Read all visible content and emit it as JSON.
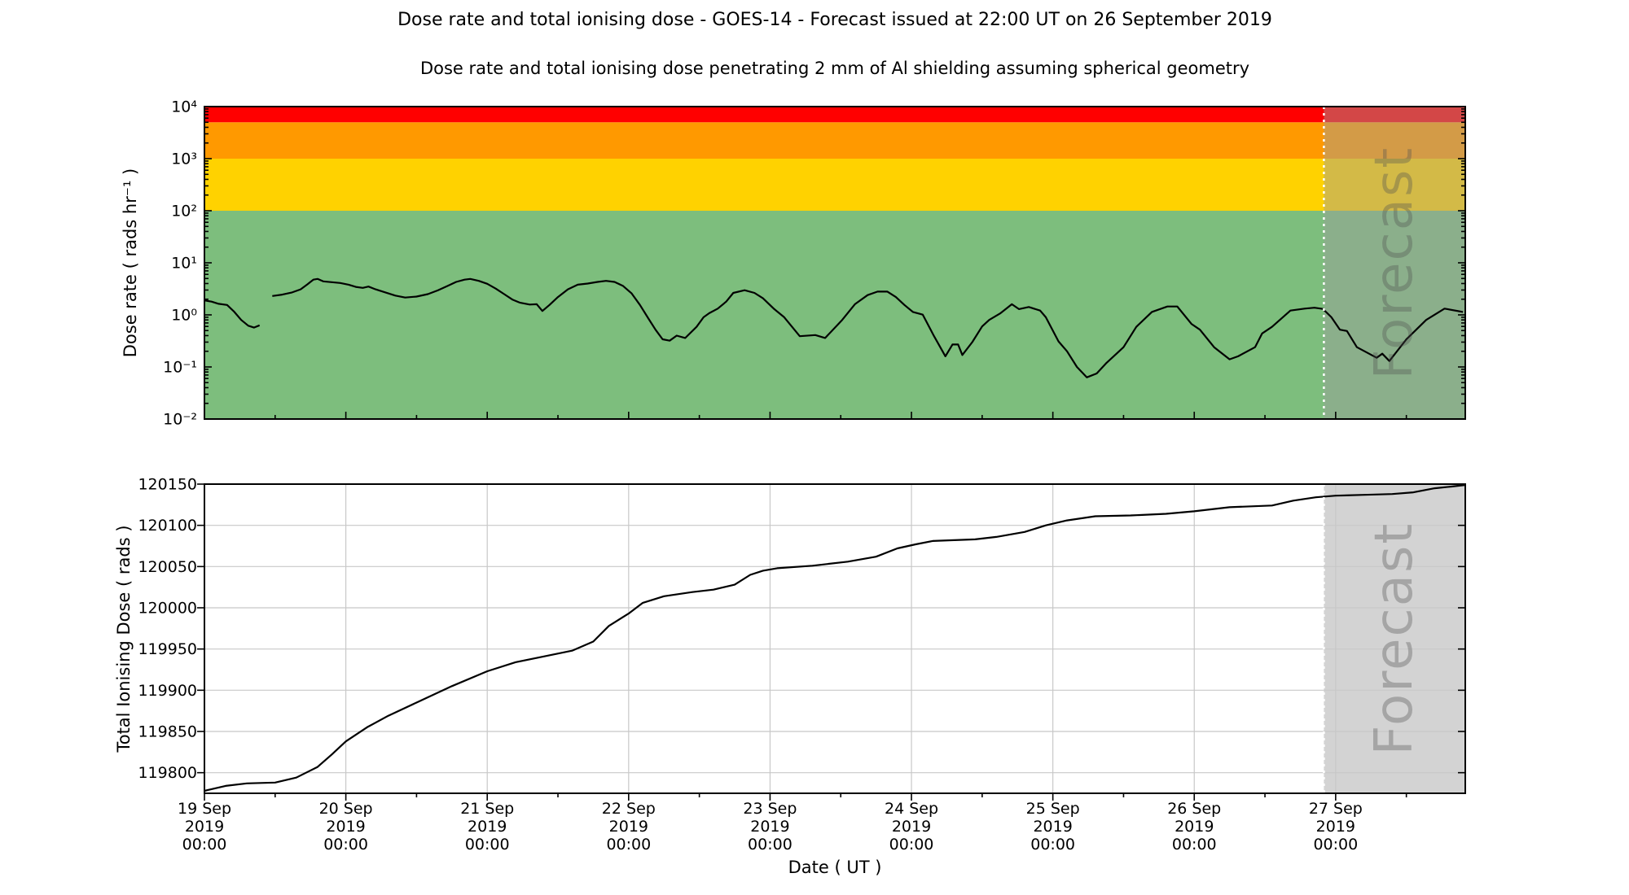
{
  "figure": {
    "title": "Dose rate and total ionising dose - GOES-14 - Forecast issued at 22:00 UT on 26 September 2019",
    "subtitle": "Dose rate and total ionising dose penetrating 2 mm of Al shielding assuming spherical geometry",
    "background": "#FFFFFF"
  },
  "forecast": {
    "label": "Forecast",
    "start_day": 7.9167,
    "overlay_color": "rgba(158,158,158,0.45)",
    "divider_color": "#FFFFFF"
  },
  "xaxis": {
    "label": "Date ( UT )",
    "dates": [
      "19 Sep",
      "20 Sep",
      "21 Sep",
      "22 Sep",
      "23 Sep",
      "24 Sep",
      "25 Sep",
      "26 Sep",
      "27 Sep"
    ],
    "year": "2019",
    "time": "00:00",
    "domain_days": [
      0,
      8.9167
    ],
    "major_tick_days": [
      0,
      1,
      2,
      3,
      4,
      5,
      6,
      7,
      8
    ],
    "minor_tick_interval_days": 0.5
  },
  "chart_data": [
    {
      "id": "dose_rate",
      "type": "line",
      "ylabel": "Dose rate ( rads hr⁻¹ )",
      "yscale": "log",
      "ylim": [
        0.01,
        10000
      ],
      "yticks": [
        {
          "v": 0.01,
          "label": "10⁻²"
        },
        {
          "v": 0.1,
          "label": "10⁻¹"
        },
        {
          "v": 1,
          "label": "10⁰"
        },
        {
          "v": 10,
          "label": "10¹"
        },
        {
          "v": 100,
          "label": "10²"
        },
        {
          "v": 1000,
          "label": "10³"
        },
        {
          "v": 10000,
          "label": "10⁴"
        }
      ],
      "bands": [
        {
          "name": "green-nominal",
          "from": 0.01,
          "to": 100,
          "color": "#7DBE7D"
        },
        {
          "name": "yellow-alert",
          "from": 100,
          "to": 1000,
          "color": "#FFD200"
        },
        {
          "name": "orange-alert",
          "from": 1000,
          "to": 5000,
          "color": "#FF9900"
        },
        {
          "name": "red-alert",
          "from": 5000,
          "to": 10000,
          "color": "#FF0000"
        }
      ],
      "grid": false,
      "series": [
        {
          "name": "dose-rate",
          "color": "#000000",
          "points": [
            [
              0.0,
              1.9
            ],
            [
              0.05,
              1.8
            ],
            [
              0.1,
              1.63
            ],
            [
              0.16,
              1.55
            ],
            [
              0.21,
              1.15
            ],
            [
              0.26,
              0.8
            ],
            [
              0.31,
              0.62
            ],
            [
              0.35,
              0.57
            ],
            [
              0.39,
              0.63
            ],
            null,
            [
              0.48,
              2.3
            ],
            [
              0.55,
              2.45
            ],
            [
              0.62,
              2.7
            ],
            [
              0.68,
              3.1
            ],
            [
              0.73,
              3.9
            ],
            [
              0.77,
              4.75
            ],
            [
              0.8,
              4.9
            ],
            [
              0.84,
              4.4
            ],
            [
              0.9,
              4.25
            ],
            [
              0.96,
              4.1
            ],
            [
              1.02,
              3.8
            ],
            [
              1.07,
              3.45
            ],
            [
              1.12,
              3.3
            ],
            [
              1.16,
              3.5
            ],
            [
              1.21,
              3.1
            ],
            [
              1.28,
              2.7
            ],
            [
              1.35,
              2.35
            ],
            [
              1.42,
              2.15
            ],
            [
              1.5,
              2.25
            ],
            [
              1.58,
              2.5
            ],
            [
              1.65,
              2.95
            ],
            [
              1.72,
              3.6
            ],
            [
              1.78,
              4.3
            ],
            [
              1.84,
              4.75
            ],
            [
              1.88,
              4.9
            ],
            [
              1.94,
              4.5
            ],
            [
              2.0,
              3.95
            ],
            [
              2.06,
              3.2
            ],
            [
              2.12,
              2.5
            ],
            [
              2.18,
              1.95
            ],
            [
              2.23,
              1.72
            ],
            [
              2.3,
              1.58
            ],
            [
              2.35,
              1.6
            ],
            [
              2.39,
              1.19
            ],
            [
              2.44,
              1.55
            ],
            [
              2.5,
              2.2
            ],
            [
              2.57,
              3.1
            ],
            [
              2.64,
              3.8
            ],
            [
              2.71,
              4.0
            ],
            [
              2.78,
              4.3
            ],
            [
              2.84,
              4.5
            ],
            [
              2.9,
              4.3
            ],
            [
              2.96,
              3.6
            ],
            [
              3.02,
              2.6
            ],
            [
              3.08,
              1.55
            ],
            [
              3.14,
              0.85
            ],
            [
              3.19,
              0.52
            ],
            [
              3.24,
              0.34
            ],
            [
              3.29,
              0.32
            ],
            [
              3.34,
              0.4
            ],
            [
              3.4,
              0.36
            ],
            [
              3.48,
              0.59
            ],
            [
              3.53,
              0.9
            ],
            [
              3.57,
              1.08
            ],
            [
              3.63,
              1.32
            ],
            [
              3.69,
              1.8
            ],
            [
              3.74,
              2.64
            ],
            [
              3.82,
              2.98
            ],
            [
              3.89,
              2.64
            ],
            [
              3.95,
              2.08
            ],
            [
              4.03,
              1.29
            ],
            [
              4.1,
              0.9
            ],
            [
              4.21,
              0.39
            ],
            [
              4.32,
              0.41
            ],
            [
              4.39,
              0.36
            ],
            [
              4.51,
              0.8
            ],
            [
              4.6,
              1.6
            ],
            [
              4.69,
              2.4
            ],
            [
              4.76,
              2.8
            ],
            [
              4.83,
              2.8
            ],
            [
              4.89,
              2.2
            ],
            [
              4.95,
              1.55
            ],
            [
              5.01,
              1.14
            ],
            [
              5.08,
              1.01
            ],
            [
              5.16,
              0.39
            ],
            [
              5.24,
              0.16
            ],
            [
              5.29,
              0.27
            ],
            [
              5.33,
              0.27
            ],
            [
              5.36,
              0.17
            ],
            [
              5.43,
              0.3
            ],
            [
              5.5,
              0.6
            ],
            [
              5.55,
              0.8
            ],
            [
              5.63,
              1.08
            ],
            [
              5.71,
              1.6
            ],
            [
              5.76,
              1.29
            ],
            [
              5.83,
              1.42
            ],
            [
              5.91,
              1.21
            ],
            [
              5.95,
              0.9
            ],
            [
              6.04,
              0.31
            ],
            [
              6.1,
              0.2
            ],
            [
              6.17,
              0.1
            ],
            [
              6.24,
              0.063
            ],
            [
              6.31,
              0.075
            ],
            [
              6.38,
              0.12
            ],
            [
              6.45,
              0.18
            ],
            [
              6.5,
              0.24
            ],
            [
              6.59,
              0.59
            ],
            [
              6.7,
              1.14
            ],
            [
              6.81,
              1.45
            ],
            [
              6.88,
              1.45
            ],
            [
              6.98,
              0.67
            ],
            [
              7.04,
              0.52
            ],
            [
              7.14,
              0.24
            ],
            [
              7.25,
              0.14
            ],
            [
              7.31,
              0.16
            ],
            [
              7.43,
              0.24
            ],
            [
              7.48,
              0.44
            ],
            [
              7.55,
              0.59
            ],
            [
              7.68,
              1.21
            ],
            [
              7.78,
              1.32
            ],
            [
              7.85,
              1.37
            ],
            [
              7.91,
              1.3
            ],
            [
              7.97,
              0.9
            ],
            [
              8.03,
              0.52
            ],
            [
              8.08,
              0.49
            ],
            [
              8.15,
              0.24
            ],
            [
              8.29,
              0.15
            ],
            [
              8.33,
              0.18
            ],
            [
              8.38,
              0.13
            ],
            [
              8.5,
              0.34
            ],
            [
              8.56,
              0.49
            ],
            [
              8.64,
              0.8
            ],
            [
              8.77,
              1.32
            ],
            [
              8.9,
              1.14
            ]
          ]
        }
      ]
    },
    {
      "id": "total_dose",
      "type": "line",
      "ylabel": "Total Ionising Dose ( rads )",
      "yscale": "linear",
      "ylim": [
        119775,
        120150
      ],
      "yticks": [
        {
          "v": 119800,
          "label": "119800"
        },
        {
          "v": 119850,
          "label": "119850"
        },
        {
          "v": 119900,
          "label": "119900"
        },
        {
          "v": 119950,
          "label": "119950"
        },
        {
          "v": 120000,
          "label": "120000"
        },
        {
          "v": 120050,
          "label": "120050"
        },
        {
          "v": 120100,
          "label": "120100"
        },
        {
          "v": 120150,
          "label": "120150"
        }
      ],
      "bands": [],
      "grid": true,
      "grid_color": "#C8C8C8",
      "series": [
        {
          "name": "total-dose",
          "color": "#000000",
          "points": [
            [
              0.0,
              119778
            ],
            [
              0.15,
              119784
            ],
            [
              0.3,
              119787
            ],
            [
              0.5,
              119788
            ],
            [
              0.65,
              119794
            ],
            [
              0.8,
              119807
            ],
            [
              0.9,
              119822
            ],
            [
              1.0,
              119838
            ],
            [
              1.15,
              119855
            ],
            [
              1.3,
              119869
            ],
            [
              1.5,
              119885
            ],
            [
              1.75,
              119905
            ],
            [
              2.0,
              119923
            ],
            [
              2.2,
              119934
            ],
            [
              2.4,
              119941
            ],
            [
              2.6,
              119948
            ],
            [
              2.75,
              119959
            ],
            [
              2.86,
              119978
            ],
            [
              3.0,
              119993
            ],
            [
              3.1,
              120006
            ],
            [
              3.25,
              120014
            ],
            [
              3.45,
              120019
            ],
            [
              3.6,
              120022
            ],
            [
              3.75,
              120028
            ],
            [
              3.86,
              120040
            ],
            [
              3.95,
              120045
            ],
            [
              4.05,
              120048
            ],
            [
              4.3,
              120051
            ],
            [
              4.55,
              120056
            ],
            [
              4.75,
              120062
            ],
            [
              4.9,
              120072
            ],
            [
              5.03,
              120077
            ],
            [
              5.15,
              120081
            ],
            [
              5.45,
              120083
            ],
            [
              5.6,
              120086
            ],
            [
              5.8,
              120092
            ],
            [
              5.95,
              120100
            ],
            [
              6.1,
              120106
            ],
            [
              6.3,
              120111
            ],
            [
              6.55,
              120112
            ],
            [
              6.8,
              120114
            ],
            [
              7.0,
              120117
            ],
            [
              7.25,
              120122
            ],
            [
              7.55,
              120124
            ],
            [
              7.7,
              120130
            ],
            [
              7.86,
              120134
            ],
            [
              8.0,
              120136
            ],
            [
              8.2,
              120137
            ],
            [
              8.4,
              120138
            ],
            [
              8.55,
              120140
            ],
            [
              8.7,
              120145
            ],
            [
              8.82,
              120147
            ],
            [
              8.92,
              120149
            ]
          ]
        }
      ]
    }
  ]
}
